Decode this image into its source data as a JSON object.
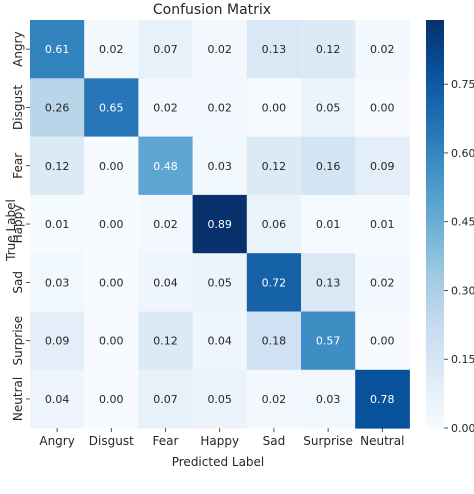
{
  "chart_data": {
    "type": "heatmap",
    "title": "Confusion Matrix",
    "xlabel": "Predicted Label",
    "ylabel": "True Label",
    "x_categories": [
      "Angry",
      "Disgust",
      "Fear",
      "Happy",
      "Sad",
      "Surprise",
      "Neutral"
    ],
    "y_categories": [
      "Angry",
      "Disgust",
      "Fear",
      "Happy",
      "Sad",
      "Surprise",
      "Neutral"
    ],
    "values": [
      [
        0.61,
        0.02,
        0.07,
        0.02,
        0.13,
        0.12,
        0.02
      ],
      [
        0.26,
        0.65,
        0.02,
        0.02,
        0.0,
        0.05,
        0.0
      ],
      [
        0.12,
        0.0,
        0.48,
        0.03,
        0.12,
        0.16,
        0.09
      ],
      [
        0.01,
        0.0,
        0.02,
        0.89,
        0.06,
        0.01,
        0.01
      ],
      [
        0.03,
        0.0,
        0.04,
        0.05,
        0.72,
        0.13,
        0.02
      ],
      [
        0.09,
        0.0,
        0.12,
        0.04,
        0.18,
        0.57,
        0.0
      ],
      [
        0.04,
        0.0,
        0.07,
        0.05,
        0.02,
        0.03,
        0.78
      ]
    ],
    "colorbar": {
      "range": [
        0,
        0.89
      ],
      "ticks": [
        0.0,
        0.15,
        0.3,
        0.45,
        0.6,
        0.75
      ],
      "tick_labels": [
        "0.00",
        "0.15",
        "0.30",
        "0.45",
        "0.60",
        "0.75"
      ],
      "colormap": "Blues",
      "low_color": "#f7fbff",
      "high_color": "#08306b"
    },
    "grid": false,
    "legend": "colorbar-right"
  }
}
